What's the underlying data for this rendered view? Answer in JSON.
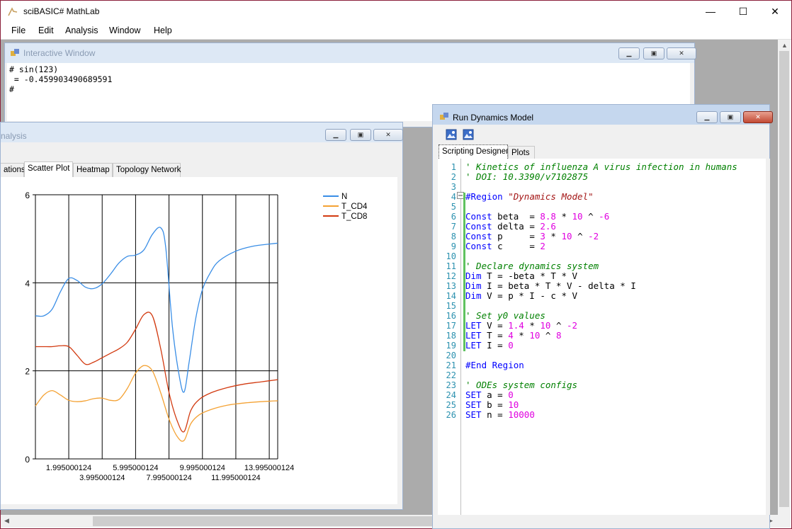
{
  "app": {
    "title": "sciBASIC# MathLab"
  },
  "window_controls": {
    "minimize": "—",
    "maximize": "☐",
    "close": "✕"
  },
  "menu": [
    "File",
    "Edit",
    "Analysis",
    "Window",
    "Help"
  ],
  "interactive": {
    "title": "Interactive Window",
    "lines": [
      "# sin(123)",
      " = -0.459903490689591",
      "#"
    ]
  },
  "analysis": {
    "title": "nalysis",
    "tabs": [
      "ations",
      "Scatter Plot",
      "Heatmap",
      "Topology Network"
    ],
    "selected_tab": "Scatter Plot"
  },
  "dynamics": {
    "title": "Run Dynamics Model",
    "tabs": [
      "Scripting Designer",
      "Plots"
    ],
    "code_lines": [
      [
        [
          "cm",
          "' Kinetics of influenza A virus infection in humans"
        ]
      ],
      [
        [
          "cm",
          "' DOI: 10.3390/v7102875"
        ]
      ],
      [],
      [
        [
          "kw",
          "#Region "
        ],
        [
          "str",
          "\"Dynamics Model\""
        ]
      ],
      [],
      [
        [
          "kw",
          "Const"
        ],
        [
          "",
          " beta  = "
        ],
        [
          "num",
          "8.8"
        ],
        [
          "",
          " * "
        ],
        [
          "num",
          "10"
        ],
        [
          "",
          " ^ "
        ],
        [
          "num",
          "-6"
        ]
      ],
      [
        [
          "kw",
          "Const"
        ],
        [
          "",
          " delta = "
        ],
        [
          "num",
          "2.6"
        ]
      ],
      [
        [
          "kw",
          "Const"
        ],
        [
          "",
          " p     = "
        ],
        [
          "num",
          "3"
        ],
        [
          "",
          " * "
        ],
        [
          "num",
          "10"
        ],
        [
          "",
          " ^ "
        ],
        [
          "num",
          "-2"
        ]
      ],
      [
        [
          "kw",
          "Const"
        ],
        [
          "",
          " c     = "
        ],
        [
          "num",
          "2"
        ]
      ],
      [],
      [
        [
          "cm",
          "' Declare dynamics system"
        ]
      ],
      [
        [
          "kw",
          "Dim"
        ],
        [
          "",
          " T = -beta * T * V"
        ]
      ],
      [
        [
          "kw",
          "Dim"
        ],
        [
          "",
          " I = beta * T * V - delta * I"
        ]
      ],
      [
        [
          "kw",
          "Dim"
        ],
        [
          "",
          " V = p * I - c * V"
        ]
      ],
      [],
      [
        [
          "cm",
          "' Set y0 values"
        ]
      ],
      [
        [
          "kw",
          "LET"
        ],
        [
          "",
          " V = "
        ],
        [
          "num",
          "1.4"
        ],
        [
          "",
          " * "
        ],
        [
          "num",
          "10"
        ],
        [
          "",
          " ^ "
        ],
        [
          "num",
          "-2"
        ]
      ],
      [
        [
          "kw",
          "LET"
        ],
        [
          "",
          " T = "
        ],
        [
          "num",
          "4"
        ],
        [
          "",
          " * "
        ],
        [
          "num",
          "10"
        ],
        [
          "",
          " ^ "
        ],
        [
          "num",
          "8"
        ]
      ],
      [
        [
          "kw",
          "LET"
        ],
        [
          "",
          " I = "
        ],
        [
          "num",
          "0"
        ]
      ],
      [],
      [
        [
          "kw",
          "#End Region"
        ]
      ],
      [],
      [
        [
          "cm",
          "' ODEs system configs"
        ]
      ],
      [
        [
          "kw",
          "SET"
        ],
        [
          "",
          " a = "
        ],
        [
          "num",
          "0"
        ]
      ],
      [
        [
          "kw",
          "SET"
        ],
        [
          "",
          " b = "
        ],
        [
          "num",
          "10"
        ]
      ],
      [
        [
          "kw",
          "SET"
        ],
        [
          "",
          " n = "
        ],
        [
          "num",
          "10000"
        ]
      ]
    ]
  },
  "chart_data": {
    "type": "line",
    "xlim": [
      0,
      14.5
    ],
    "ylim": [
      0,
      6
    ],
    "grid": true,
    "legend": "top-right",
    "y_ticks": [
      "0",
      "2",
      "4",
      "6"
    ],
    "x_ticks": [
      {
        "value": 1.995000124,
        "label": "1.995000124"
      },
      {
        "value": 3.995000124,
        "label": "3.995000124"
      },
      {
        "value": 5.995000124,
        "label": "5.995000124"
      },
      {
        "value": 7.995000124,
        "label": "7.995000124"
      },
      {
        "value": 9.995000124,
        "label": "9.995000124"
      },
      {
        "value": 11.995000124,
        "label": "11.995000124"
      },
      {
        "value": 13.995000124,
        "label": "13.995000124"
      }
    ],
    "series": [
      {
        "name": "N",
        "color": "#3a8ee6",
        "points": [
          [
            0,
            3.25
          ],
          [
            0.5,
            3.25
          ],
          [
            1.0,
            3.4
          ],
          [
            1.5,
            3.8
          ],
          [
            2.0,
            4.1
          ],
          [
            2.5,
            4.05
          ],
          [
            3.0,
            3.9
          ],
          [
            3.5,
            3.87
          ],
          [
            4.0,
            3.98
          ],
          [
            4.5,
            4.2
          ],
          [
            5.0,
            4.45
          ],
          [
            5.5,
            4.6
          ],
          [
            6.0,
            4.63
          ],
          [
            6.5,
            4.75
          ],
          [
            7.0,
            5.1
          ],
          [
            7.5,
            5.25
          ],
          [
            7.8,
            4.8
          ],
          [
            8.2,
            3.0
          ],
          [
            8.6,
            1.9
          ],
          [
            8.9,
            1.52
          ],
          [
            9.2,
            2.2
          ],
          [
            9.6,
            3.2
          ],
          [
            10.0,
            3.85
          ],
          [
            10.5,
            4.25
          ],
          [
            11.0,
            4.5
          ],
          [
            12.0,
            4.72
          ],
          [
            13.0,
            4.83
          ],
          [
            14.0,
            4.88
          ],
          [
            14.5,
            4.9
          ]
        ]
      },
      {
        "name": "T_CD4",
        "color": "#f4a234",
        "points": [
          [
            0,
            1.2
          ],
          [
            0.5,
            1.45
          ],
          [
            1.0,
            1.55
          ],
          [
            1.5,
            1.45
          ],
          [
            2.0,
            1.33
          ],
          [
            2.5,
            1.3
          ],
          [
            3.0,
            1.32
          ],
          [
            3.5,
            1.37
          ],
          [
            4.0,
            1.38
          ],
          [
            4.5,
            1.33
          ],
          [
            5.0,
            1.35
          ],
          [
            5.5,
            1.6
          ],
          [
            6.0,
            1.95
          ],
          [
            6.5,
            2.12
          ],
          [
            7.0,
            2.0
          ],
          [
            7.5,
            1.5
          ],
          [
            8.0,
            0.9
          ],
          [
            8.5,
            0.5
          ],
          [
            8.9,
            0.42
          ],
          [
            9.3,
            0.8
          ],
          [
            9.8,
            1.0
          ],
          [
            10.5,
            1.12
          ],
          [
            11.5,
            1.22
          ],
          [
            12.5,
            1.27
          ],
          [
            13.5,
            1.3
          ],
          [
            14.5,
            1.32
          ]
        ]
      },
      {
        "name": "T_CD8",
        "color": "#d23a10",
        "points": [
          [
            0,
            2.55
          ],
          [
            0.5,
            2.55
          ],
          [
            1.0,
            2.55
          ],
          [
            1.5,
            2.57
          ],
          [
            2.0,
            2.55
          ],
          [
            2.5,
            2.35
          ],
          [
            3.0,
            2.15
          ],
          [
            3.5,
            2.2
          ],
          [
            4.0,
            2.3
          ],
          [
            4.5,
            2.4
          ],
          [
            5.0,
            2.5
          ],
          [
            5.5,
            2.65
          ],
          [
            6.0,
            2.95
          ],
          [
            6.5,
            3.28
          ],
          [
            7.0,
            3.25
          ],
          [
            7.5,
            2.5
          ],
          [
            8.0,
            1.5
          ],
          [
            8.5,
            0.85
          ],
          [
            8.9,
            0.62
          ],
          [
            9.3,
            1.1
          ],
          [
            9.8,
            1.35
          ],
          [
            10.5,
            1.5
          ],
          [
            11.5,
            1.62
          ],
          [
            12.5,
            1.7
          ],
          [
            13.5,
            1.75
          ],
          [
            14.5,
            1.8
          ]
        ]
      }
    ]
  }
}
